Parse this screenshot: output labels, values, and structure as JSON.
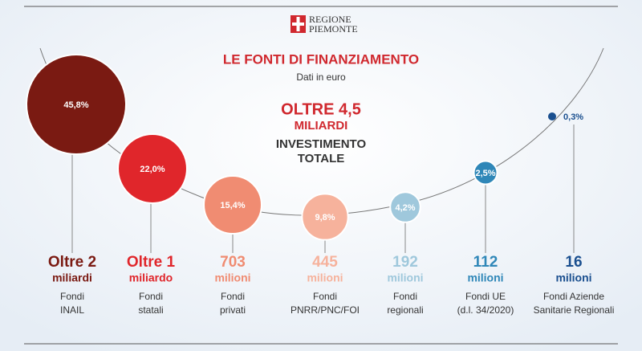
{
  "header": {
    "logo_lines": [
      "REGIONE",
      "PIEMONTE"
    ]
  },
  "chart_data": {
    "type": "bubble",
    "title": "LE FONTI DI FINANZIAMENTO",
    "subtitle": "Dati in euro",
    "annotations": [
      "OLTRE 4,5",
      "MILIARDI",
      "INVESTIMENTO",
      "TOTALE"
    ],
    "values": [
      45.8,
      22.0,
      15.4,
      9.8,
      4.2,
      2.5,
      0.3
    ],
    "value_labels": [
      "45,8%",
      "22,0%",
      "15,4%",
      "9,8%",
      "4,2%",
      "2,5%",
      "0,3%"
    ],
    "amount_labels": [
      "Oltre 2",
      "Oltre 1",
      "703",
      "445",
      "192",
      "112",
      "16"
    ],
    "amount_units": [
      "miliardi",
      "miliardo",
      "milioni",
      "milioni",
      "milioni",
      "milioni",
      "milioni"
    ],
    "labels": [
      [
        "Fondi",
        "INAIL"
      ],
      [
        "Fondi",
        "statali"
      ],
      [
        "Fondi",
        "privati"
      ],
      [
        "Fondi",
        "PNRR/PNC/FOI"
      ],
      [
        "Fondi",
        "regionali"
      ],
      [
        "Fondi UE",
        "(d.l. 34/2020)"
      ],
      [
        "Fondi Aziende",
        "Sanitarie Regionali"
      ]
    ],
    "colors": [
      "#7a1a12",
      "#e0262b",
      "#f08c72",
      "#f6b29c",
      "#9fc8dc",
      "#2f87b8",
      "#1a4f8f"
    ]
  }
}
